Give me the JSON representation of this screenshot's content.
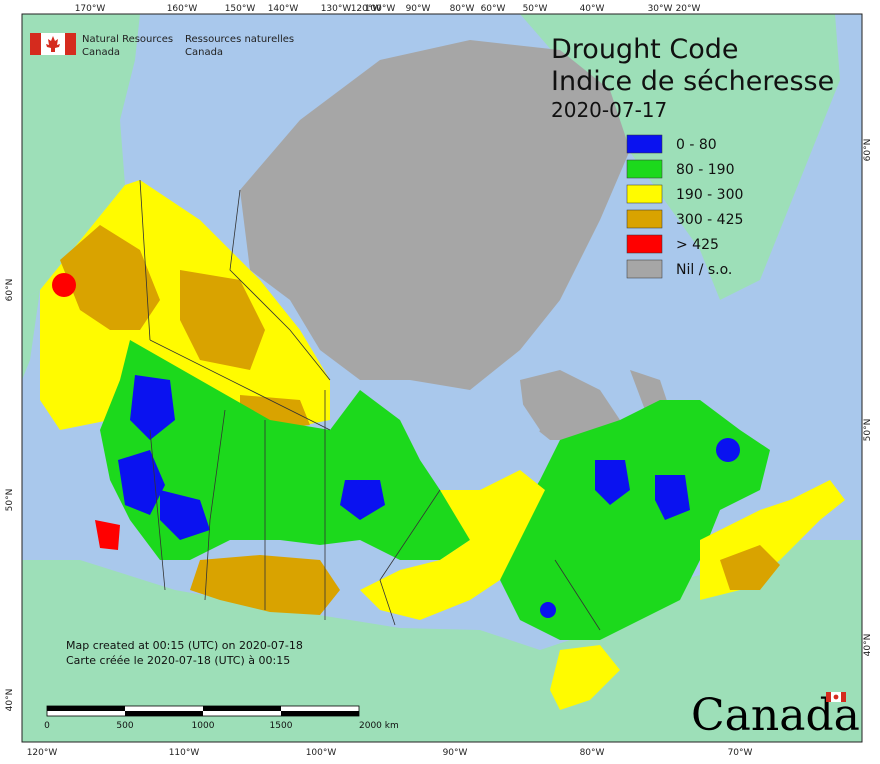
{
  "map": {
    "title_en": "Drought Code",
    "title_fr": "Indice de sécheresse",
    "date": "2020-07-17",
    "agency_en_line1": "Natural Resources",
    "agency_en_line2": "Canada",
    "agency_fr_line1": "Ressources naturelles",
    "agency_fr_line2": "Canada",
    "credit_en": "Map created at 00:15 (UTC) on 2020-07-18",
    "credit_fr": "Carte créée le 2020-07-18 (UTC) à 00:15",
    "wordmark": "Canada",
    "colors": {
      "water": "#a9c8ec",
      "land_outside": "#9ddfb8",
      "nodata": "#a6a6a6",
      "border": "#333333",
      "flag_red": "#d52b1e"
    }
  },
  "legend": [
    {
      "label": "0 - 80",
      "color": "#0a12f0"
    },
    {
      "label": "80 - 190",
      "color": "#1cd91c"
    },
    {
      "label": "190 - 300",
      "color": "#fffb00"
    },
    {
      "label": "300 - 425",
      "color": "#d9a300"
    },
    {
      "label": "> 425",
      "color": "#ff0000"
    },
    {
      "label": "Nil / s.o.",
      "color": "#a6a6a6"
    }
  ],
  "graticule": {
    "top": [
      "170°W",
      "160°W",
      "150°W",
      "140°W",
      "130°W",
      "120°W",
      "100°W",
      "90°W",
      "80°W",
      "60°W",
      "50°W",
      "40°W",
      "30°W",
      "20°W"
    ],
    "bottom": [
      "120°W",
      "110°W",
      "100°W",
      "90°W",
      "80°W",
      "70°W"
    ],
    "left": [
      "60°N",
      "50°N",
      "40°N"
    ],
    "right": [
      "60°N",
      "50°N",
      "40°N"
    ]
  },
  "scale_bar": {
    "labels": [
      "0",
      "500",
      "1000",
      "1500",
      "2000  km"
    ]
  }
}
